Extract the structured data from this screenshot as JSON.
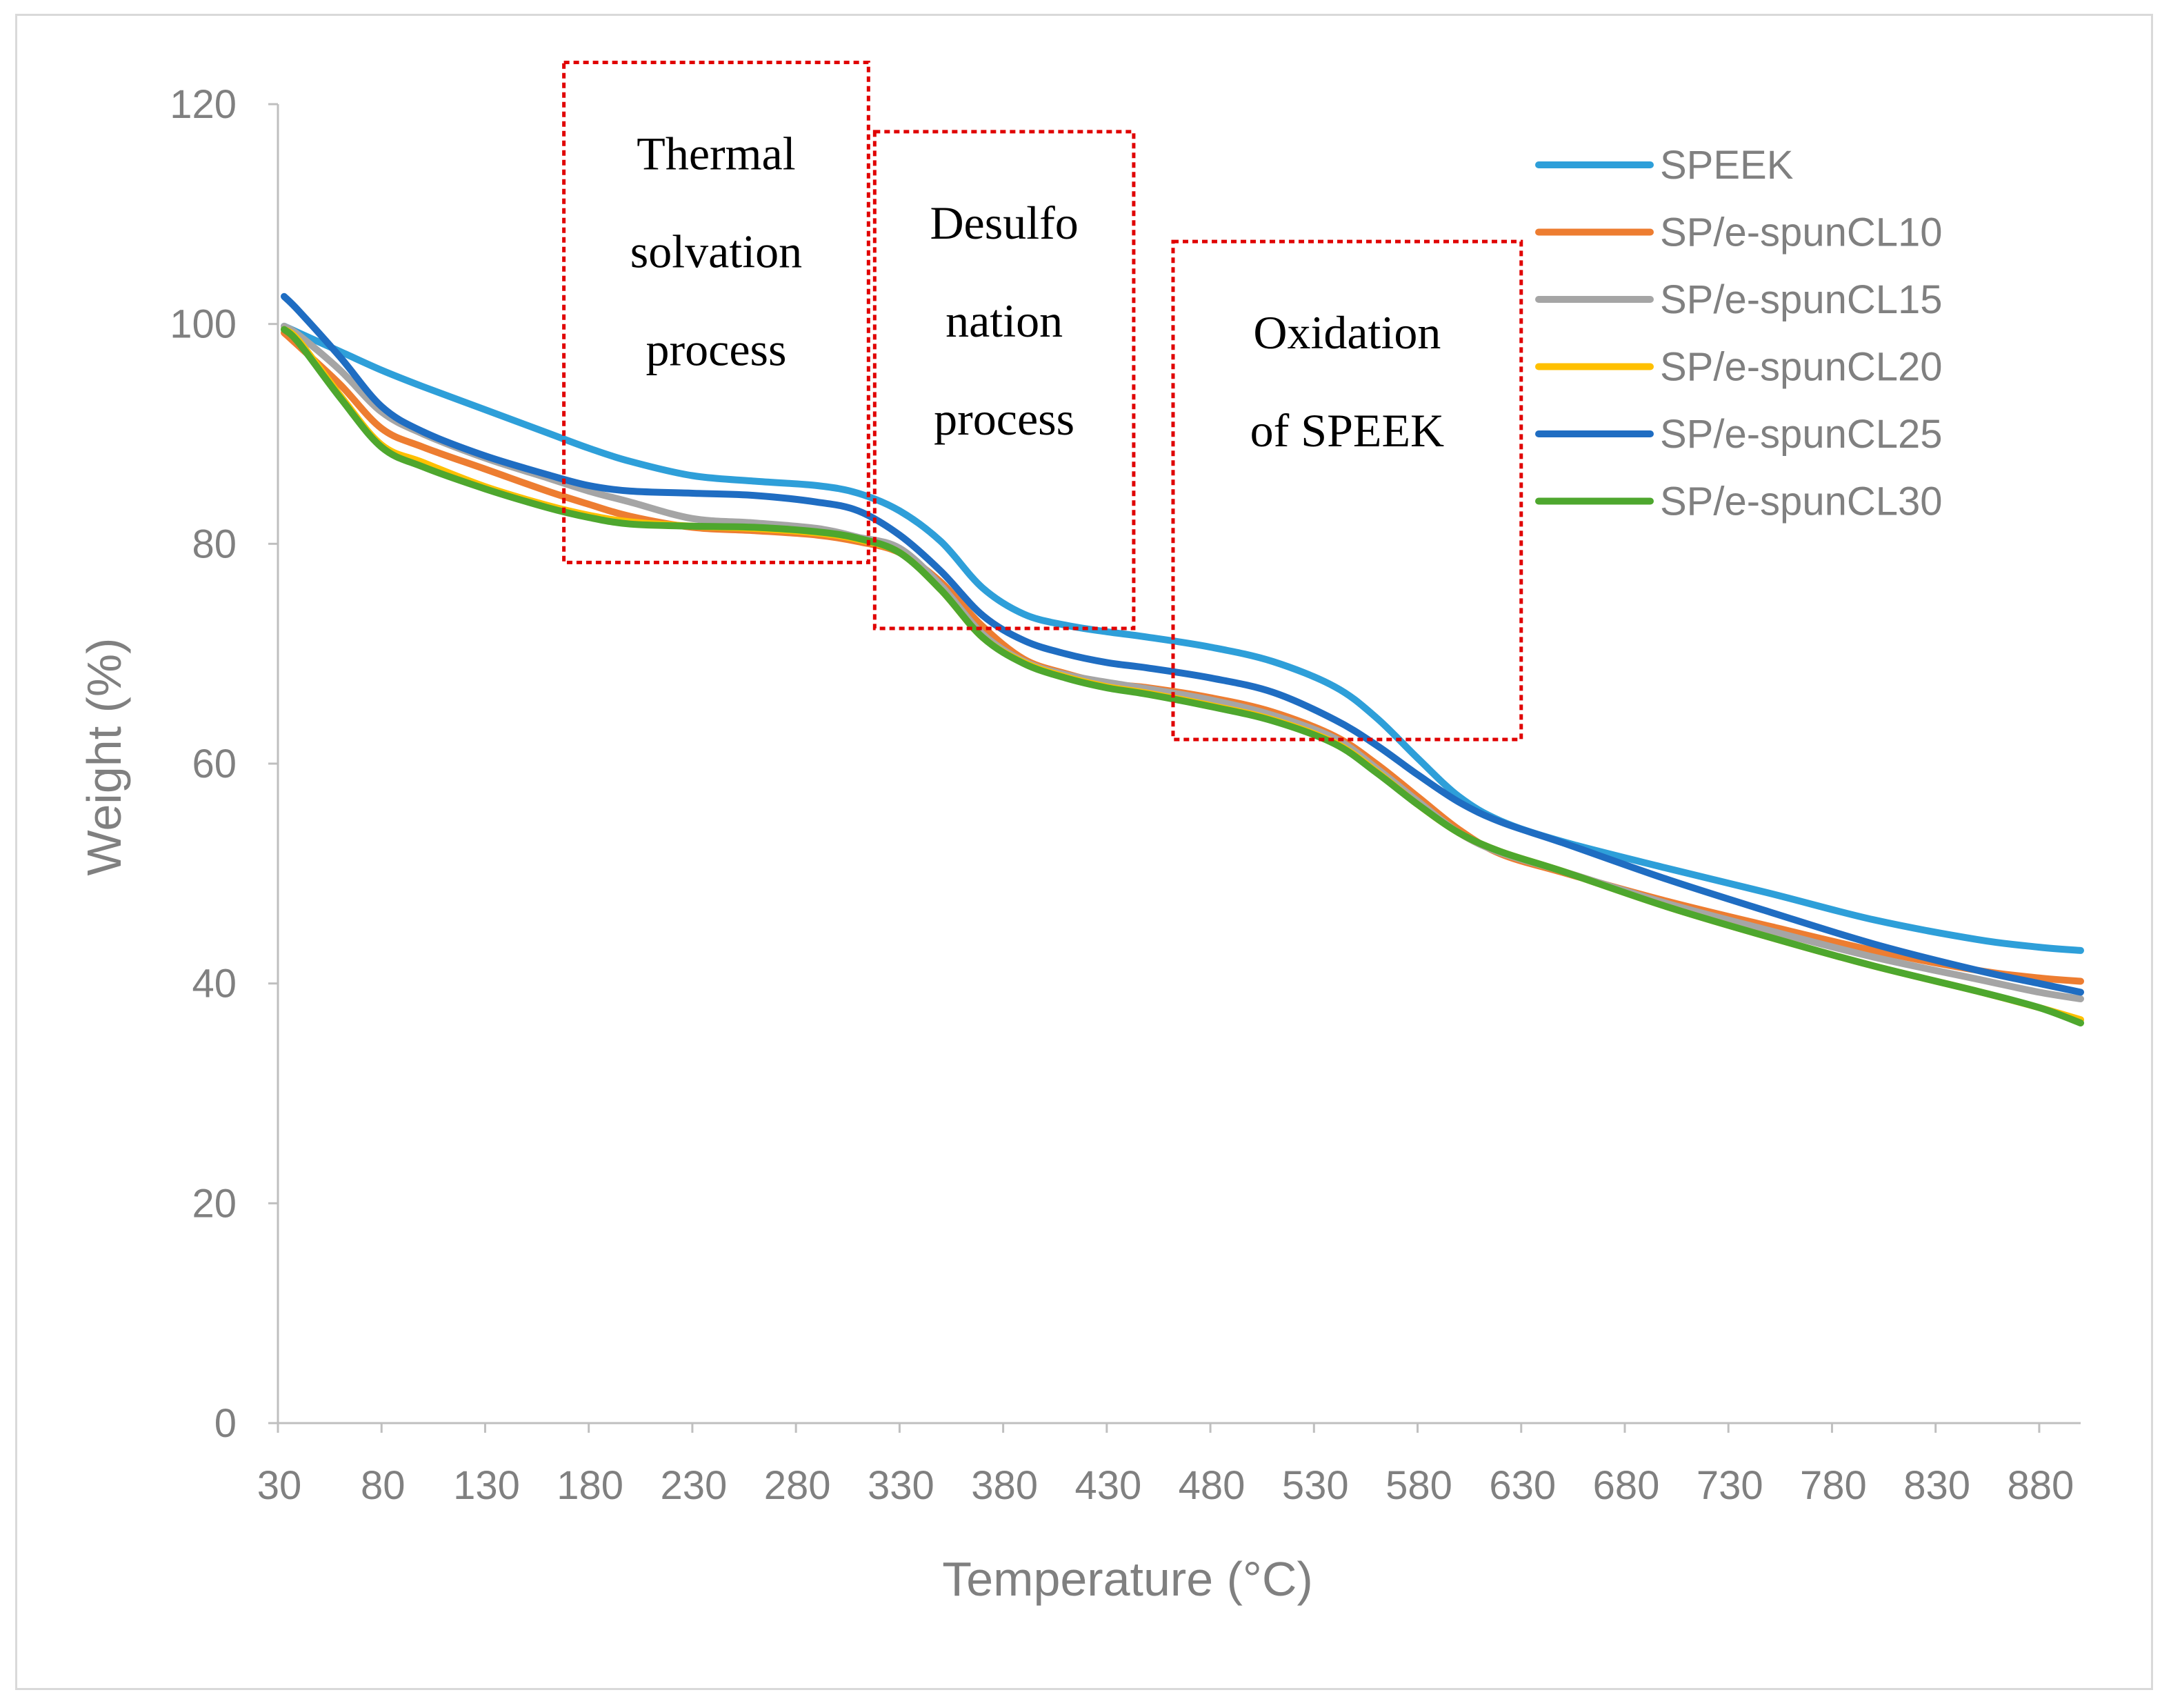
{
  "chart_data": {
    "type": "line",
    "title": "",
    "xlabel": "Temperature  (°C)",
    "ylabel": "Weight (%)",
    "xlim": [
      30,
      900
    ],
    "ylim": [
      0,
      120
    ],
    "x_ticks": [
      30,
      80,
      130,
      180,
      230,
      280,
      330,
      380,
      430,
      480,
      530,
      580,
      630,
      680,
      730,
      780,
      830,
      880
    ],
    "y_ticks": [
      0,
      20,
      40,
      60,
      80,
      100,
      120
    ],
    "grid": false,
    "legend_position": "top-right",
    "series": [
      {
        "name": "SPEEK",
        "color": "#2E9FD9",
        "x": [
          33,
          40,
          60,
          80,
          100,
          130,
          160,
          180,
          200,
          230,
          260,
          290,
          310,
          330,
          350,
          370,
          390,
          410,
          430,
          450,
          480,
          510,
          540,
          560,
          580,
          600,
          620,
          650,
          700,
          750,
          800,
          850,
          880,
          900
        ],
        "y": [
          99.8,
          99.2,
          97.5,
          95.8,
          94.3,
          92.2,
          90.1,
          88.7,
          87.5,
          86.2,
          85.7,
          85.3,
          84.6,
          83.0,
          80.2,
          76.0,
          73.6,
          72.6,
          72.0,
          71.5,
          70.6,
          69.3,
          67.0,
          64.2,
          60.5,
          57.0,
          54.8,
          52.9,
          50.5,
          48.2,
          45.8,
          44.0,
          43.3,
          43.0
        ]
      },
      {
        "name": "SP/e-spunCL10",
        "color": "#ED7D31",
        "x": [
          33,
          40,
          60,
          80,
          100,
          130,
          160,
          180,
          200,
          230,
          260,
          290,
          310,
          330,
          350,
          370,
          390,
          410,
          430,
          450,
          480,
          510,
          540,
          560,
          580,
          600,
          620,
          650,
          700,
          750,
          800,
          850,
          880,
          900
        ],
        "y": [
          99.2,
          98.0,
          94.5,
          90.5,
          88.8,
          86.8,
          84.8,
          83.6,
          82.5,
          81.5,
          81.2,
          80.8,
          80.2,
          79.2,
          76.5,
          72.5,
          69.5,
          68.2,
          67.3,
          66.9,
          66.0,
          64.7,
          62.5,
          60.0,
          57.0,
          54.0,
          51.8,
          50.1,
          47.5,
          45.2,
          43.0,
          41.2,
          40.5,
          40.2
        ]
      },
      {
        "name": "SP/e-spunCL15",
        "color": "#A5A5A5",
        "x": [
          33,
          40,
          60,
          80,
          100,
          130,
          160,
          180,
          200,
          230,
          260,
          290,
          310,
          330,
          350,
          370,
          390,
          410,
          430,
          450,
          480,
          510,
          540,
          560,
          580,
          600,
          620,
          650,
          700,
          750,
          800,
          850,
          880,
          900
        ],
        "y": [
          99.8,
          99.0,
          95.8,
          92.0,
          90.0,
          87.8,
          86.0,
          84.8,
          83.8,
          82.3,
          81.9,
          81.4,
          80.6,
          79.6,
          76.2,
          71.8,
          69.3,
          68.1,
          67.4,
          66.8,
          65.8,
          64.4,
          62.3,
          59.6,
          56.6,
          53.7,
          51.9,
          50.2,
          47.3,
          44.8,
          42.4,
          40.4,
          39.2,
          38.6
        ]
      },
      {
        "name": "SP/e-spunCL20",
        "color": "#FFC000",
        "x": [
          33,
          40,
          60,
          80,
          100,
          130,
          160,
          180,
          200,
          230,
          260,
          290,
          310,
          330,
          350,
          370,
          390,
          410,
          430,
          450,
          480,
          510,
          540,
          560,
          580,
          600,
          620,
          650,
          700,
          750,
          800,
          850,
          880,
          900
        ],
        "y": [
          99.5,
          98.5,
          93.5,
          89.0,
          87.4,
          85.2,
          83.5,
          82.6,
          82.0,
          81.6,
          81.4,
          81.0,
          80.4,
          79.2,
          75.8,
          71.5,
          69.2,
          67.9,
          67.0,
          66.4,
          65.3,
          64.0,
          61.9,
          59.3,
          56.3,
          53.7,
          52.0,
          50.2,
          47.0,
          44.2,
          41.6,
          39.3,
          37.8,
          36.7
        ]
      },
      {
        "name": "SP/e-spunCL25",
        "color": "#1F6DC2",
        "x": [
          33,
          40,
          60,
          80,
          100,
          130,
          160,
          180,
          200,
          230,
          260,
          290,
          310,
          330,
          350,
          370,
          390,
          410,
          430,
          450,
          480,
          510,
          540,
          560,
          580,
          600,
          620,
          650,
          700,
          750,
          800,
          850,
          880,
          900
        ],
        "y": [
          102.5,
          101.2,
          97.0,
          92.5,
          90.2,
          88.0,
          86.3,
          85.3,
          84.8,
          84.6,
          84.4,
          83.8,
          83.0,
          80.8,
          77.5,
          73.5,
          71.2,
          70.0,
          69.2,
          68.7,
          67.8,
          66.5,
          64.0,
          61.7,
          59.0,
          56.5,
          54.7,
          52.8,
          49.5,
          46.5,
          43.6,
          41.2,
          40.0,
          39.2
        ]
      },
      {
        "name": "SP/e-spunCL30",
        "color": "#4EA72E",
        "x": [
          33,
          40,
          60,
          80,
          100,
          130,
          160,
          180,
          200,
          230,
          260,
          290,
          310,
          330,
          350,
          370,
          390,
          410,
          430,
          450,
          480,
          510,
          540,
          560,
          580,
          600,
          620,
          650,
          700,
          750,
          800,
          850,
          880,
          900
        ],
        "y": [
          99.5,
          98.3,
          93.3,
          88.8,
          87.0,
          85.0,
          83.3,
          82.4,
          81.8,
          81.6,
          81.5,
          81.1,
          80.5,
          79.2,
          75.8,
          71.5,
          69.1,
          67.8,
          66.9,
          66.3,
          65.2,
          63.9,
          61.8,
          59.2,
          56.3,
          53.7,
          52.0,
          50.2,
          47.0,
          44.2,
          41.6,
          39.3,
          37.8,
          36.4
        ]
      }
    ],
    "annotations": [
      {
        "name": "thermal-solvation",
        "lines": [
          "Thermal",
          "solvation",
          "process"
        ],
        "x_range": [
          168,
          315
        ],
        "y_range": [
          78.3,
          123.8
        ]
      },
      {
        "name": "desulfonation",
        "lines": [
          "Desulfo",
          "nation",
          "process"
        ],
        "x_range": [
          318,
          443
        ],
        "y_range": [
          72.3,
          117.5
        ]
      },
      {
        "name": "oxidation",
        "lines": [
          "Oxidation",
          "of SPEEK"
        ],
        "x_range": [
          462,
          630
        ],
        "y_range": [
          62.2,
          107.5
        ]
      }
    ]
  }
}
